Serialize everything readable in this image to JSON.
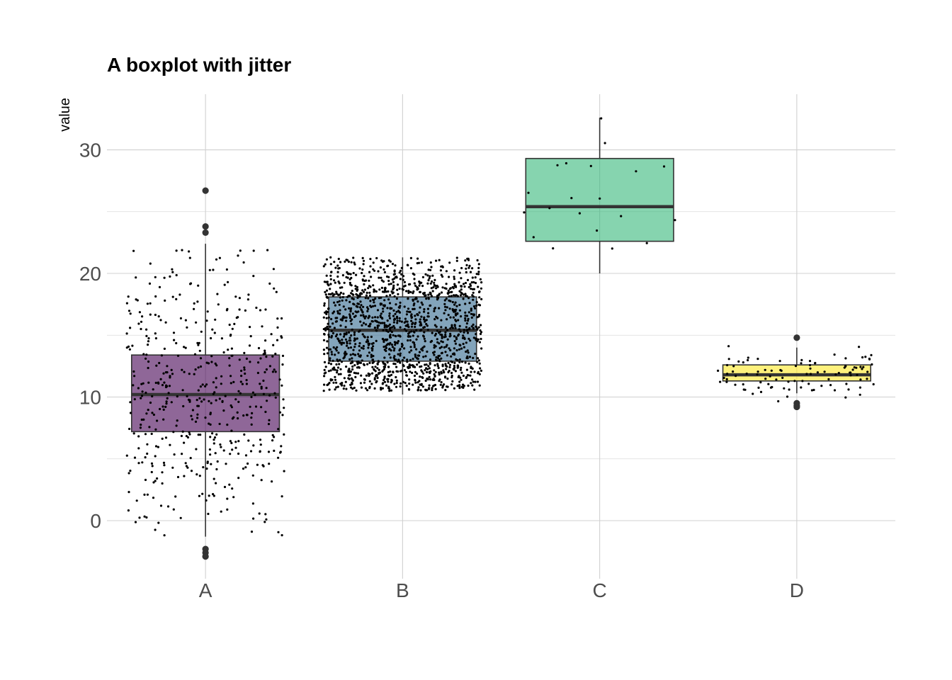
{
  "chart_data": {
    "type": "boxplot",
    "title": "A boxplot with jitter",
    "xlabel": "",
    "ylabel": "value",
    "ylim": [
      -4.7,
      34.5
    ],
    "y_ticks": [
      0,
      10,
      20,
      30
    ],
    "y_tick_labels": [
      "0",
      "10",
      "20",
      "30"
    ],
    "y_minor_ticks": [
      5,
      15,
      25
    ],
    "grid": true,
    "legend": "none",
    "categories": [
      "A",
      "B",
      "C",
      "D"
    ],
    "boxes": [
      {
        "name": "A",
        "color": "#440154",
        "whisker_low": -1.3,
        "q1": 7.2,
        "median": 10.2,
        "q3": 13.4,
        "whisker_high": 22.4,
        "outliers": [
          26.7,
          23.8,
          23.3,
          -2.3,
          -2.6,
          -2.9
        ],
        "n_points": 500,
        "jitter_range": [
          -1.5,
          22.0
        ]
      },
      {
        "name": "B",
        "color": "#31688E",
        "whisker_low": 10.2,
        "q1": 12.9,
        "median": 15.4,
        "q3": 18.1,
        "whisker_high": 21.3,
        "outliers": [],
        "n_points": 1500,
        "jitter_range": [
          10.5,
          21.3
        ]
      },
      {
        "name": "C",
        "color": "#35B779",
        "whisker_low": 20.0,
        "q1": 22.6,
        "median": 25.4,
        "q3": 29.3,
        "whisker_high": 32.6,
        "outliers": [],
        "n_points": 20,
        "jitter_range": [
          20.0,
          32.6
        ]
      },
      {
        "name": "D",
        "color": "#FDE725",
        "whisker_low": 10.3,
        "q1": 11.3,
        "median": 11.8,
        "q3": 12.6,
        "whisker_high": 14.0,
        "outliers": [
          14.8,
          9.5,
          9.3,
          9.2
        ],
        "n_points": 100,
        "jitter_range": [
          9.2,
          14.8
        ]
      }
    ]
  }
}
